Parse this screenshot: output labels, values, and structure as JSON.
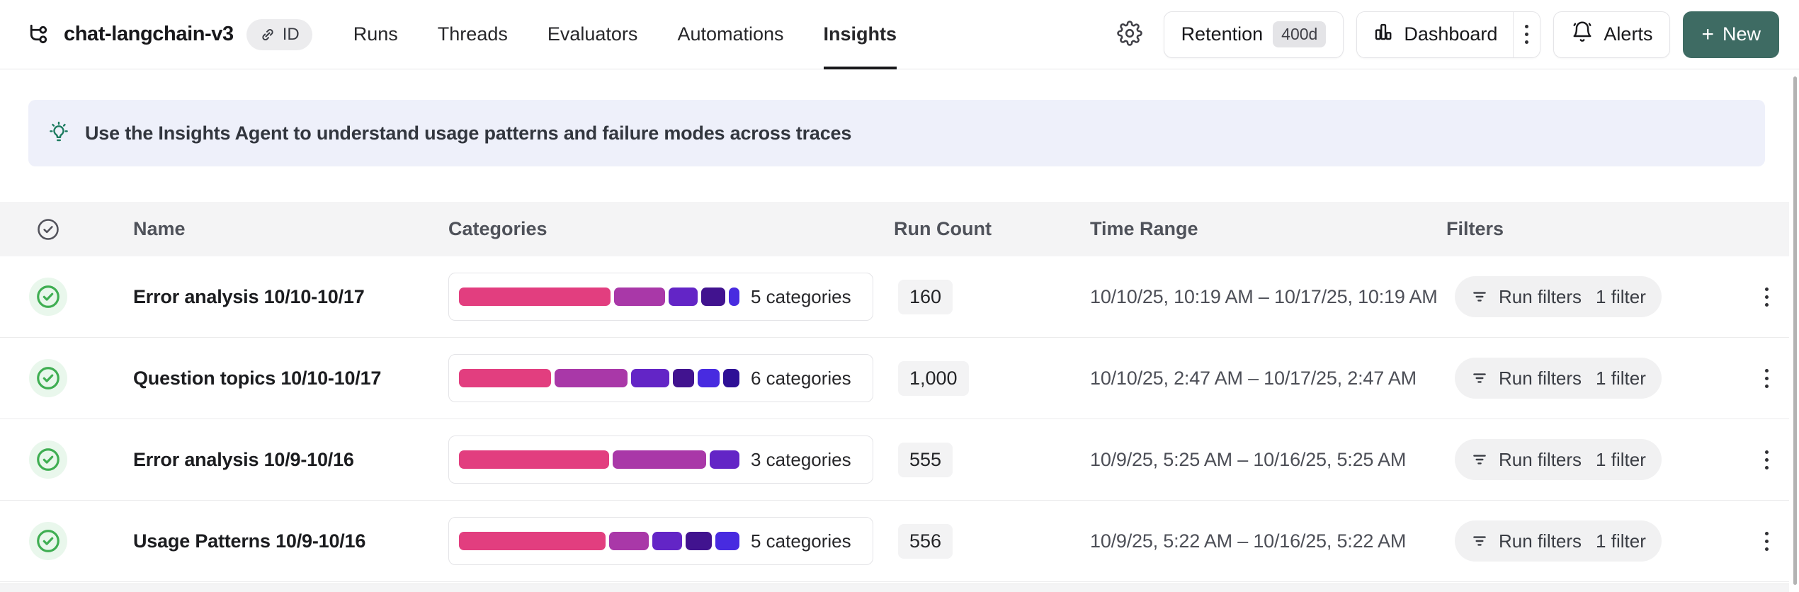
{
  "header": {
    "title": "chat-langchain-v3",
    "id_badge": "ID",
    "tabs": [
      {
        "label": "Runs",
        "active": false
      },
      {
        "label": "Threads",
        "active": false
      },
      {
        "label": "Evaluators",
        "active": false
      },
      {
        "label": "Automations",
        "active": false
      },
      {
        "label": "Insights",
        "active": true
      }
    ],
    "actions": {
      "retention_label": "Retention",
      "retention_value": "400d",
      "dashboard_label": "Dashboard",
      "alerts_label": "Alerts",
      "new_plus": "+",
      "new_label": "New"
    }
  },
  "banner": {
    "text": "Use the Insights Agent to understand usage patterns and failure modes across traces"
  },
  "table": {
    "columns": {
      "name": "Name",
      "categories": "Categories",
      "run_count": "Run Count",
      "time_range": "Time Range",
      "filters": "Filters"
    },
    "rows": [
      {
        "name": "Error analysis 10/10-10/17",
        "segments": [
          57,
          19,
          11,
          9,
          4
        ],
        "categories_label": "5 categories",
        "run_count": "160",
        "time_range": "10/10/25, 10:19 AM – 10/17/25, 10:19 AM",
        "filter_label": "Run filters",
        "filter_count": "1 filter"
      },
      {
        "name": "Question topics 10/10-10/17",
        "segments": [
          34,
          27,
          14,
          8,
          8,
          6
        ],
        "categories_label": "6 categories",
        "run_count": "1,000",
        "time_range": "10/10/25, 2:47 AM – 10/17/25, 2:47 AM",
        "filter_label": "Run filters",
        "filter_count": "1 filter"
      },
      {
        "name": "Error analysis 10/9-10/16",
        "segments": [
          55,
          34,
          11
        ],
        "categories_label": "3 categories",
        "run_count": "555",
        "time_range": "10/9/25, 5:25 AM – 10/16/25, 5:25 AM",
        "filter_label": "Run filters",
        "filter_count": "1 filter"
      },
      {
        "name": "Usage Patterns 10/9-10/16",
        "segments": [
          55,
          15,
          11,
          10,
          9
        ],
        "categories_label": "5 categories",
        "run_count": "556",
        "time_range": "10/9/25, 5:22 AM – 10/16/25, 5:22 AM",
        "filter_label": "Run filters",
        "filter_count": "1 filter"
      }
    ]
  },
  "colors": {
    "category_palette": [
      "#e23e7f",
      "#a938a8",
      "#6325c6",
      "#41138f",
      "#482be0",
      "#2e1096"
    ],
    "new_button_bg": "#3e6b63",
    "check_green": "#3fae52",
    "banner_bg": "#eef0fa"
  },
  "icons": {
    "project": "tree-icon",
    "id_link": "link-icon",
    "settings": "gear-icon",
    "dashboard": "bar-chart-icon",
    "more": "kebab-icon",
    "alerts": "bell-icon",
    "new": "plus-icon",
    "banner": "lightbulb-icon",
    "select_all": "circle-check-icon",
    "row_status": "circle-check-icon",
    "filter": "filter-lines-icon",
    "row_menu": "kebab-icon"
  }
}
